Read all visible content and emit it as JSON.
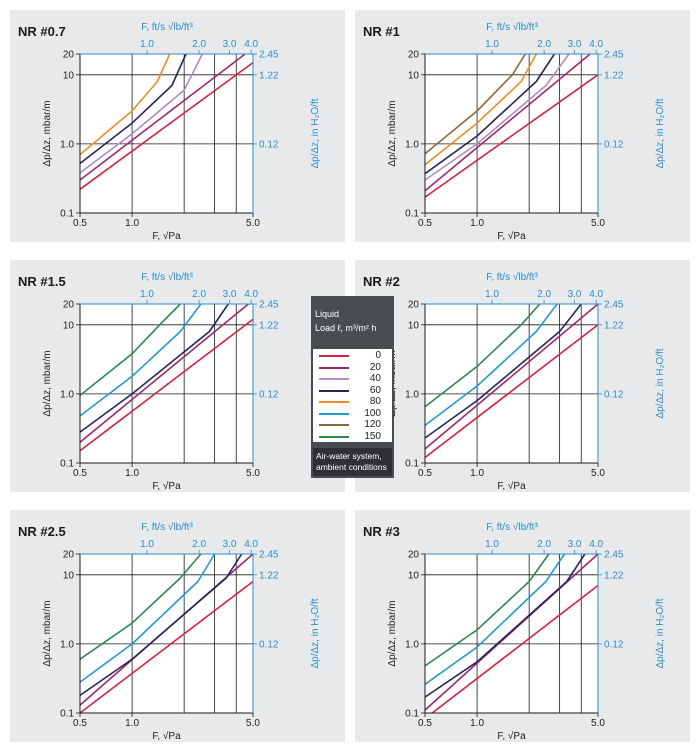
{
  "colors": {
    "0": "#d9203f",
    "20": "#a12769",
    "40": "#b08bc3",
    "60": "#26265e",
    "80": "#f28c1e",
    "100": "#1f9ad9",
    "120": "#8a6a3a",
    "150": "#2b8a4a",
    "panel_bg": "#e7e9ea",
    "blue_axis": "#2a8fcf"
  },
  "legend": {
    "title_line1": "Liquid",
    "title_line2": "Load ℓ, m³/m² h",
    "entries": [
      "0",
      "20",
      "40",
      "60",
      "80",
      "100",
      "120",
      "150"
    ],
    "note_line1": "Air-water system,",
    "note_line2": "ambient conditions"
  },
  "axes": {
    "x_label": "F, √Pa",
    "x_ticks": [
      "0.5",
      "1.0",
      "5.0"
    ],
    "x_ticks_values": [
      0.5,
      1.0,
      5.0
    ],
    "x_minor_values": [
      2.0,
      3.0,
      4.0
    ],
    "top_label": "F, ft/s √lb/ft³",
    "top_ticks": [
      "1.0",
      "2.0",
      "3.0",
      "4.0"
    ],
    "top_ticks_values": [
      1.0,
      2.0,
      3.0,
      4.0
    ],
    "y_label": "Δp/Δz, mbar/m",
    "y_ticks": [
      "0.1",
      "1.0",
      "10",
      "20"
    ],
    "y_ticks_values": [
      0.1,
      1.0,
      10,
      20
    ],
    "y2_label": "Δp/Δz, in H₂O/ft",
    "y2_ticks": [
      "0.12",
      "1.22",
      "2.45"
    ],
    "xlim": [
      0.5,
      5.0
    ],
    "ylim": [
      0.1,
      20
    ]
  },
  "chart_data": [
    {
      "type": "line",
      "title": "NR #0.7",
      "xscale": "log",
      "yscale": "log",
      "xlim": [
        0.5,
        5.0
      ],
      "ylim": [
        0.1,
        20
      ],
      "series": [
        {
          "name": "0",
          "x": [
            0.5,
            5.0
          ],
          "y": [
            0.22,
            15
          ]
        },
        {
          "name": "20",
          "x": [
            0.5,
            4.5
          ],
          "y": [
            0.3,
            20
          ]
        },
        {
          "name": "40",
          "x": [
            0.5,
            1.0,
            2.0,
            2.55
          ],
          "y": [
            0.38,
            1.4,
            6,
            20
          ]
        },
        {
          "name": "60",
          "x": [
            0.5,
            1.0,
            1.7,
            2.05
          ],
          "y": [
            0.52,
            2.0,
            7,
            20
          ]
        },
        {
          "name": "80",
          "x": [
            0.5,
            1.0,
            1.4,
            1.65
          ],
          "y": [
            0.7,
            3.0,
            8,
            20
          ]
        }
      ]
    },
    {
      "type": "line",
      "title": "NR #1",
      "xscale": "log",
      "yscale": "log",
      "xlim": [
        0.5,
        5.0
      ],
      "ylim": [
        0.1,
        20
      ],
      "series": [
        {
          "name": "0",
          "x": [
            0.5,
            5.0
          ],
          "y": [
            0.17,
            10
          ]
        },
        {
          "name": "20",
          "x": [
            0.5,
            4.5
          ],
          "y": [
            0.21,
            20
          ]
        },
        {
          "name": "40",
          "x": [
            0.5,
            1.0,
            2.5,
            3.4
          ],
          "y": [
            0.3,
            1.0,
            7,
            20
          ]
        },
        {
          "name": "60",
          "x": [
            0.5,
            1.0,
            2.2,
            2.8
          ],
          "y": [
            0.37,
            1.3,
            8,
            20
          ]
        },
        {
          "name": "80",
          "x": [
            0.5,
            1.0,
            1.8,
            2.2
          ],
          "y": [
            0.5,
            2.0,
            8,
            20
          ]
        },
        {
          "name": "120",
          "x": [
            0.5,
            1.0,
            1.6,
            1.9
          ],
          "y": [
            0.72,
            3.0,
            10,
            20
          ]
        }
      ]
    },
    {
      "type": "line",
      "title": "NR #1.5",
      "xscale": "log",
      "yscale": "log",
      "xlim": [
        0.5,
        5.0
      ],
      "ylim": [
        0.1,
        20
      ],
      "series": [
        {
          "name": "0",
          "x": [
            0.5,
            5.0
          ],
          "y": [
            0.15,
            12
          ]
        },
        {
          "name": "20",
          "x": [
            0.5,
            4.7
          ],
          "y": [
            0.2,
            20
          ]
        },
        {
          "name": "60",
          "x": [
            0.5,
            1.0,
            2.8,
            3.6
          ],
          "y": [
            0.28,
            1.0,
            8,
            20
          ]
        },
        {
          "name": "100",
          "x": [
            0.5,
            1.0,
            1.9,
            2.5
          ],
          "y": [
            0.48,
            1.8,
            8,
            20
          ]
        },
        {
          "name": "150",
          "x": [
            0.5,
            1.0,
            1.5,
            1.9
          ],
          "y": [
            0.95,
            3.8,
            11,
            20
          ]
        }
      ]
    },
    {
      "type": "line",
      "title": "NR #2",
      "xscale": "log",
      "yscale": "log",
      "xlim": [
        0.5,
        5.0
      ],
      "ylim": [
        0.1,
        20
      ],
      "series": [
        {
          "name": "0",
          "x": [
            0.5,
            5.0
          ],
          "y": [
            0.12,
            10
          ]
        },
        {
          "name": "20",
          "x": [
            0.5,
            5.0
          ],
          "y": [
            0.16,
            20
          ]
        },
        {
          "name": "60",
          "x": [
            0.5,
            1.0,
            3.0,
            4.0
          ],
          "y": [
            0.23,
            0.8,
            8,
            20
          ]
        },
        {
          "name": "100",
          "x": [
            0.5,
            1.0,
            2.2,
            2.9
          ],
          "y": [
            0.35,
            1.3,
            8,
            20
          ]
        },
        {
          "name": "150",
          "x": [
            0.5,
            1.0,
            1.8,
            2.3
          ],
          "y": [
            0.65,
            2.5,
            10,
            20
          ]
        }
      ]
    },
    {
      "type": "line",
      "title": "NR #2.5",
      "xscale": "log",
      "yscale": "log",
      "xlim": [
        0.5,
        5.0
      ],
      "ylim": [
        0.1,
        20
      ],
      "series": [
        {
          "name": "0",
          "x": [
            0.5,
            5.0
          ],
          "y": [
            0.1,
            8
          ]
        },
        {
          "name": "20",
          "x": [
            0.5,
            5.0
          ],
          "y": [
            0.13,
            20
          ]
        },
        {
          "name": "60",
          "x": [
            0.5,
            1.0,
            3.5,
            4.3
          ],
          "y": [
            0.18,
            0.6,
            9,
            20
          ]
        },
        {
          "name": "100",
          "x": [
            0.5,
            1.0,
            2.4,
            3.0
          ],
          "y": [
            0.28,
            1.0,
            8,
            20
          ]
        },
        {
          "name": "150",
          "x": [
            0.5,
            1.0,
            1.9,
            2.5
          ],
          "y": [
            0.6,
            2.0,
            9,
            20
          ]
        }
      ]
    },
    {
      "type": "line",
      "title": "NR #3",
      "xscale": "log",
      "yscale": "log",
      "xlim": [
        0.5,
        5.0
      ],
      "ylim": [
        0.1,
        20
      ],
      "series": [
        {
          "name": "0",
          "x": [
            0.55,
            5.0
          ],
          "y": [
            0.1,
            7
          ]
        },
        {
          "name": "20",
          "x": [
            0.5,
            5.0
          ],
          "y": [
            0.11,
            20
          ]
        },
        {
          "name": "60",
          "x": [
            0.5,
            1.0,
            3.3,
            4.2
          ],
          "y": [
            0.17,
            0.55,
            8,
            20
          ]
        },
        {
          "name": "100",
          "x": [
            0.5,
            1.0,
            2.5,
            3.2
          ],
          "y": [
            0.26,
            0.9,
            8,
            20
          ]
        },
        {
          "name": "150",
          "x": [
            0.5,
            1.0,
            2.0,
            2.6
          ],
          "y": [
            0.48,
            1.6,
            8,
            20
          ]
        }
      ]
    }
  ]
}
